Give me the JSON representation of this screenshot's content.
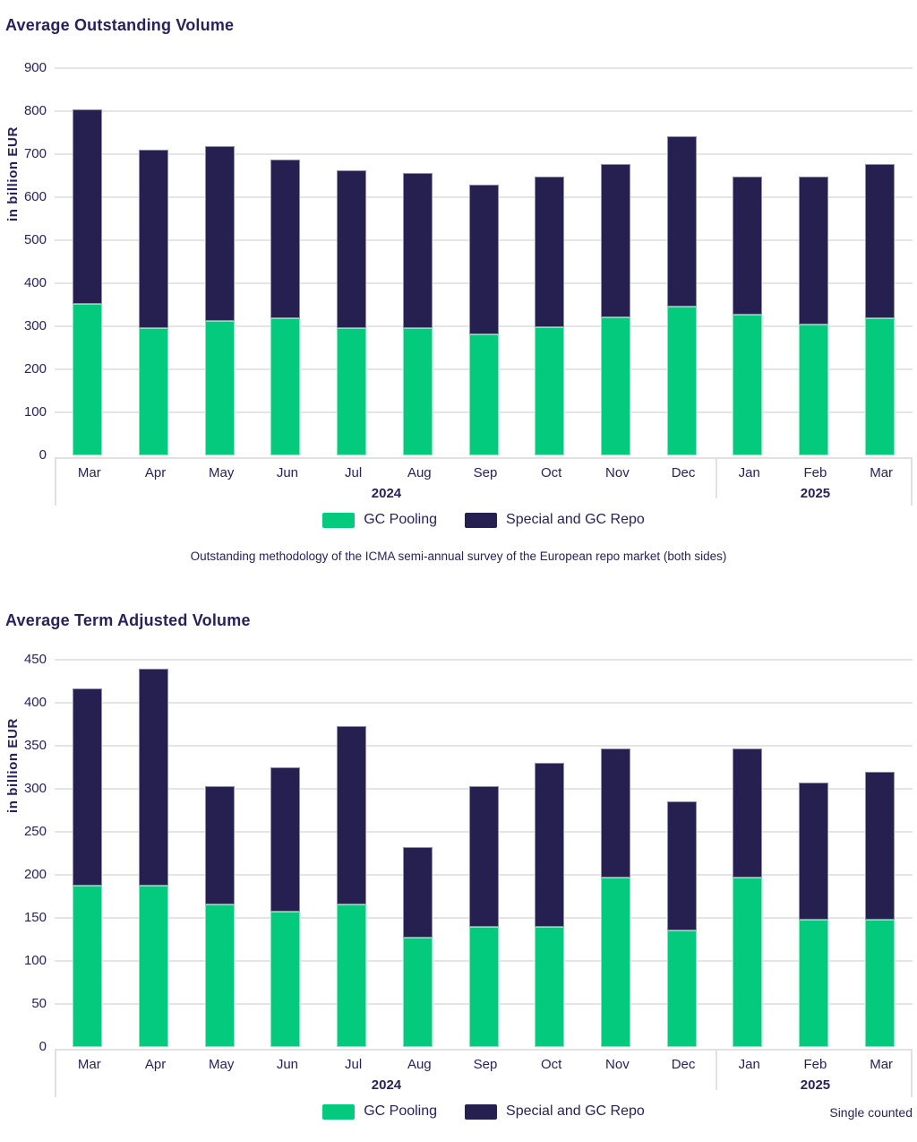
{
  "colors": {
    "green": "#03CA7C",
    "navy": "#252050",
    "text": "#2A2158",
    "gridline": "#E5E5E5",
    "axis_band_border": "#E1E1E1",
    "background": "#FFFFFF"
  },
  "chart_data": [
    {
      "type": "bar",
      "stacked": true,
      "title": "Average Outstanding Volume",
      "ylabel": "in billion EUR",
      "ylim": [
        0,
        900
      ],
      "ytick_step": 100,
      "grid": true,
      "legend_position": "bottom",
      "categories": [
        "Mar",
        "Apr",
        "May",
        "Jun",
        "Jul",
        "Aug",
        "Sep",
        "Oct",
        "Nov",
        "Dec",
        "Jan",
        "Feb",
        "Mar"
      ],
      "year_groups": [
        {
          "label": "2024",
          "span": 10
        },
        {
          "label": "2025",
          "span": 3
        }
      ],
      "series": [
        {
          "name": "GC Pooling",
          "color": "#03CA7C",
          "values": [
            352,
            295,
            312,
            319,
            295,
            295,
            281,
            297,
            321,
            345,
            328,
            304,
            319
          ]
        },
        {
          "name": "Special and GC Repo",
          "color": "#252050",
          "values": [
            453,
            416,
            407,
            368,
            368,
            361,
            349,
            350,
            357,
            397,
            320,
            343,
            359
          ]
        }
      ],
      "stack_totals": [
        805,
        711,
        719,
        687,
        663,
        656,
        630,
        647,
        678,
        742,
        648,
        647,
        678
      ],
      "footnote": "Outstanding methodology of the ICMA semi-annual survey of the European repo market (both sides)",
      "note": ""
    },
    {
      "type": "bar",
      "stacked": true,
      "title": "Average Term Adjusted Volume",
      "ylabel": "in billion EUR",
      "ylim": [
        0,
        450
      ],
      "ytick_step": 50,
      "grid": true,
      "legend_position": "bottom",
      "categories": [
        "Mar",
        "Apr",
        "May",
        "Jun",
        "Jul",
        "Aug",
        "Sep",
        "Oct",
        "Nov",
        "Dec",
        "Jan",
        "Feb",
        "Mar"
      ],
      "year_groups": [
        {
          "label": "2024",
          "span": 10
        },
        {
          "label": "2025",
          "span": 3
        }
      ],
      "series": [
        {
          "name": "GC Pooling",
          "color": "#03CA7C",
          "values": [
            188,
            188,
            166,
            157,
            166,
            127,
            140,
            140,
            197,
            135,
            197,
            148,
            148
          ]
        },
        {
          "name": "Special and GC Repo",
          "color": "#252050",
          "values": [
            229,
            252,
            137,
            168,
            207,
            105,
            163,
            190,
            150,
            150,
            150,
            159,
            172
          ]
        }
      ],
      "stack_totals": [
        417,
        440,
        303,
        325,
        373,
        232,
        303,
        330,
        347,
        285,
        347,
        307,
        320
      ],
      "footnote": "",
      "note": "Single counted"
    }
  ]
}
